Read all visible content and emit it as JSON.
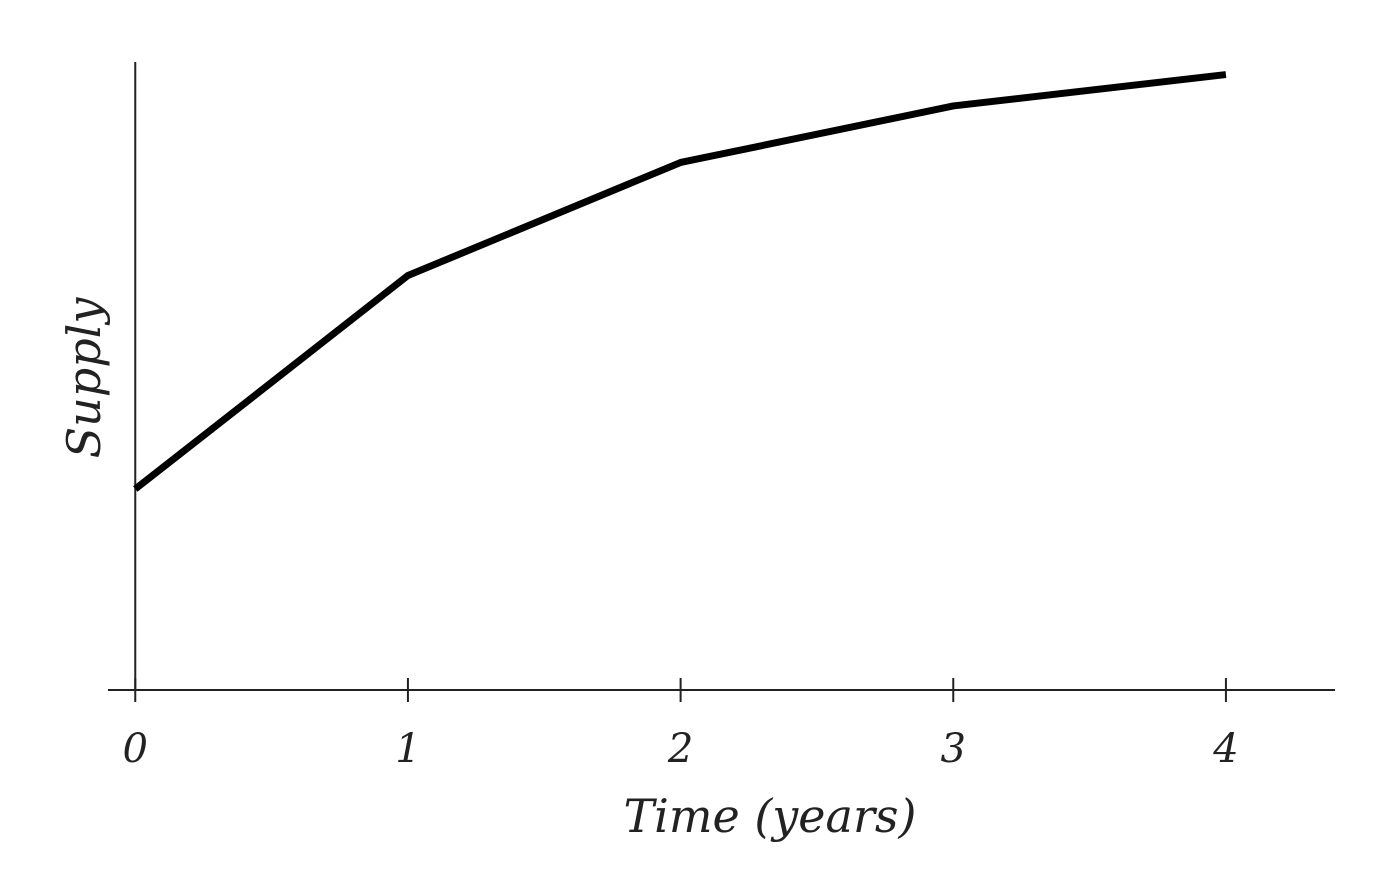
{
  "chart_data": {
    "type": "line",
    "x_label": "Time (years)",
    "y_label": "Supply",
    "x": [
      0,
      1,
      2,
      3,
      4
    ],
    "values": [
      0.32,
      0.66,
      0.84,
      0.93,
      0.98
    ],
    "color": "#000000",
    "xlim": [
      -0.1,
      4.4
    ],
    "xticks": [
      0,
      1,
      2,
      3,
      4
    ],
    "ylim": [
      0,
      1
    ],
    "grid": false
  }
}
